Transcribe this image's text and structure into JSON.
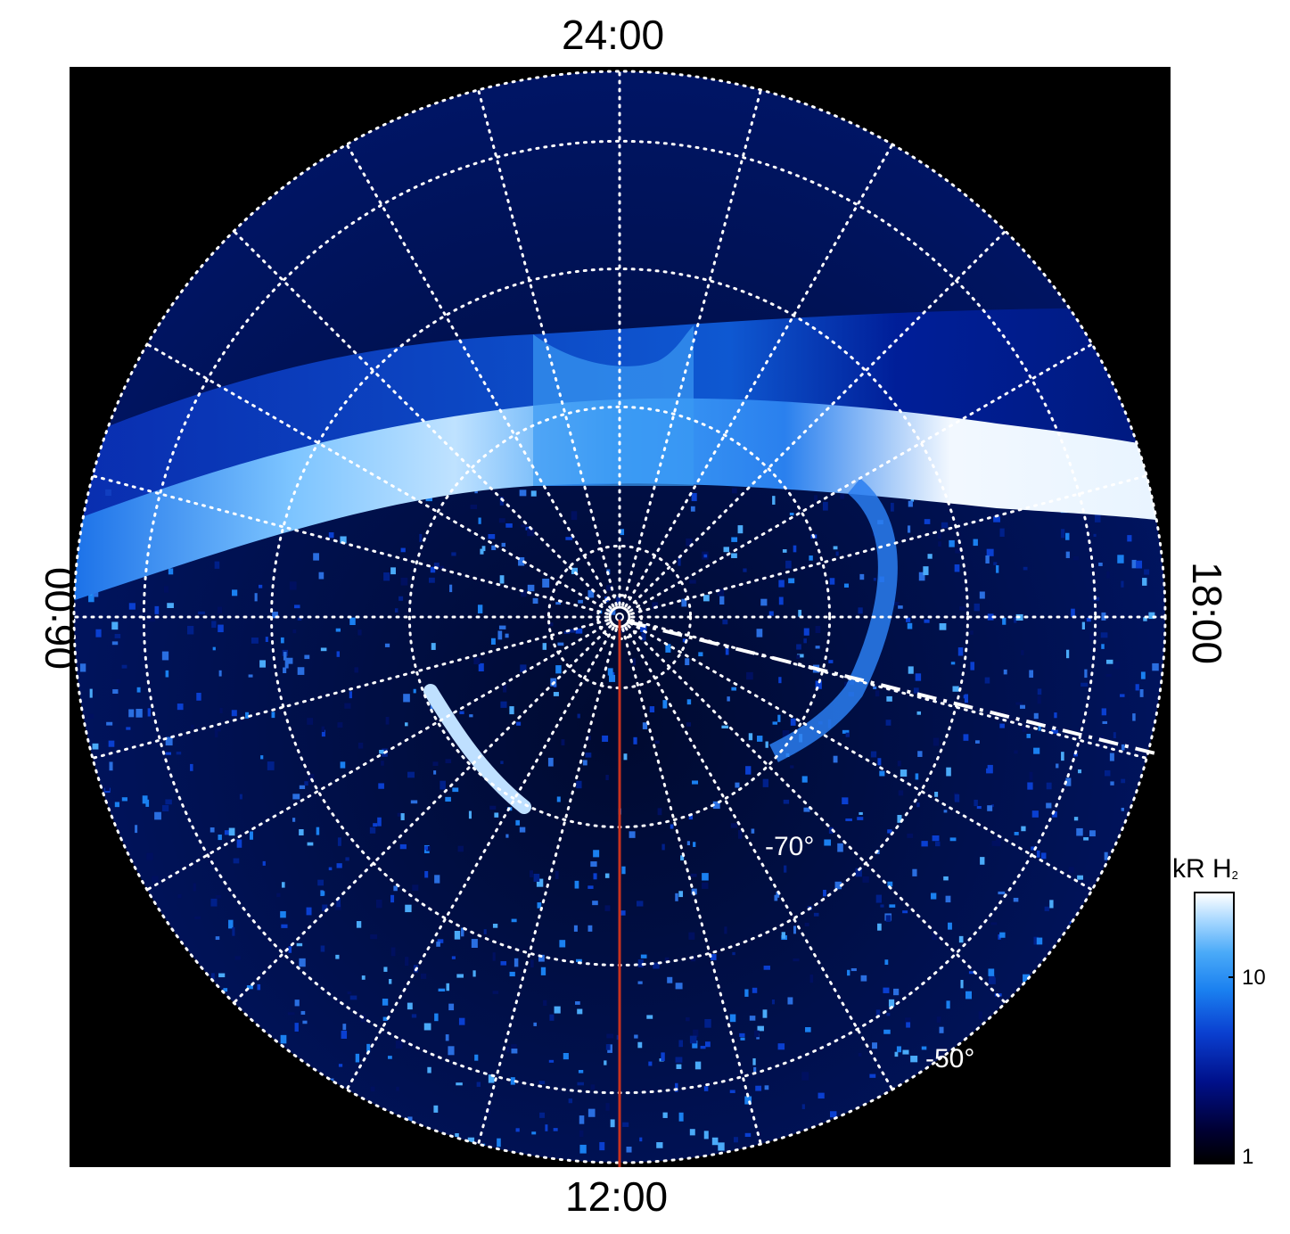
{
  "local_time_labels": {
    "top": "24:00",
    "bottom": "12:00",
    "left": "06:00",
    "right": "18:00"
  },
  "latitude_labels": {
    "inner": "-70°",
    "outer": "-50°"
  },
  "colorbar": {
    "title": "kR H",
    "title_sub": "2",
    "tick_high": "10",
    "tick_low": "1",
    "scale": "log",
    "colors": [
      "#000000",
      "#000033",
      "#00108a",
      "#0a3fd0",
      "#1a80f0",
      "#4aaaf8",
      "#a8d8ff",
      "#ffffff"
    ]
  },
  "colors": {
    "background": "#000000",
    "grid": "#ffffff",
    "meridian_line": "#c8321e",
    "aurora_bright": "#e8f4ff",
    "aurora_mid": "#2a8cf0",
    "aurora_dark": "#00208a"
  }
}
